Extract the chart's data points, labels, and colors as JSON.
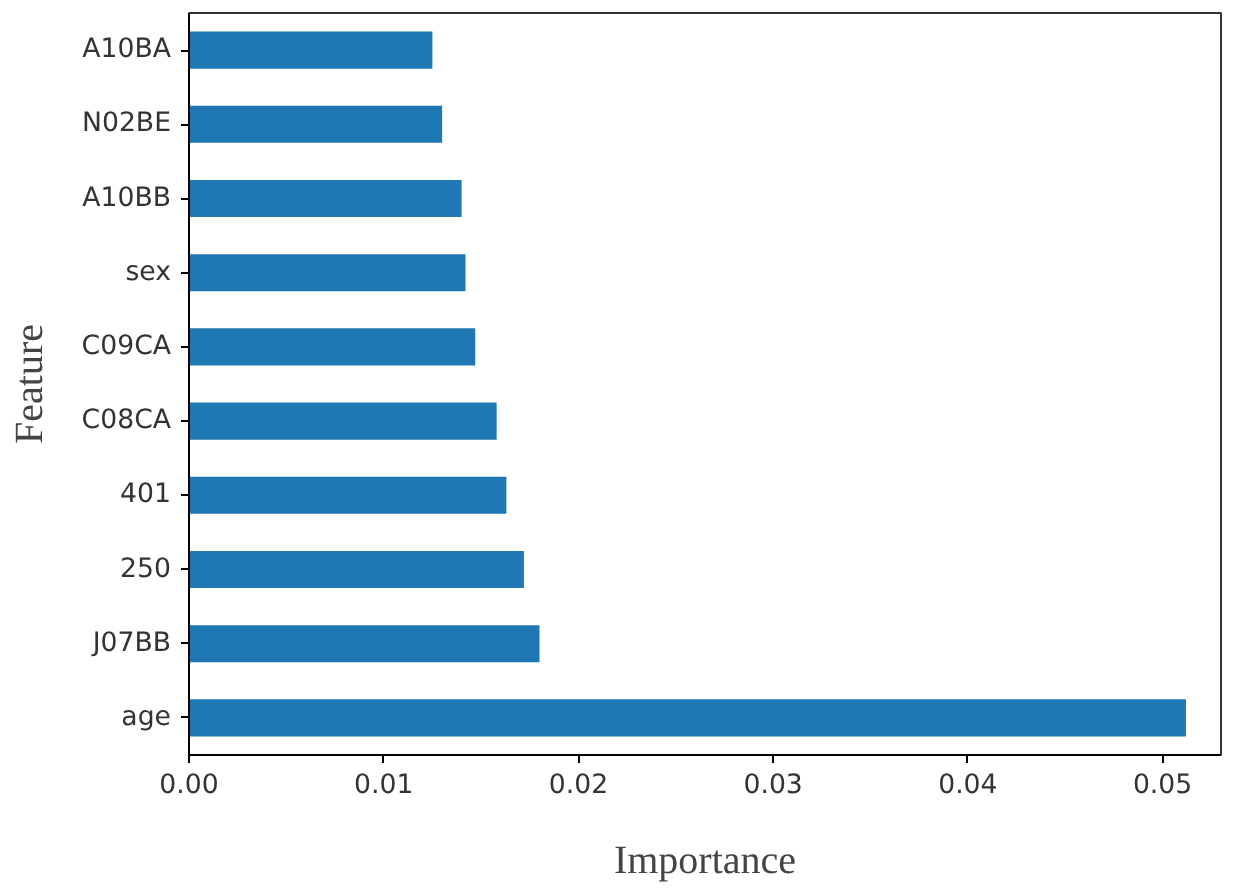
{
  "chart_data": {
    "type": "bar",
    "orientation": "horizontal",
    "xlabel": "Importance",
    "ylabel": "Feature",
    "categories": [
      "A10BA",
      "N02BE",
      "A10BB",
      "sex",
      "C09CA",
      "C08CA",
      "401",
      "250",
      "J07BB",
      "age"
    ],
    "values": [
      0.0125,
      0.013,
      0.014,
      0.0142,
      0.0147,
      0.0158,
      0.0163,
      0.0172,
      0.018,
      0.0512
    ],
    "color": "#1f77b4",
    "xlim": [
      0,
      0.053
    ],
    "xticks": [
      {
        "value": 0,
        "label": "0.00"
      },
      {
        "value": 0.01,
        "label": "0.01"
      },
      {
        "value": 0.02,
        "label": "0.02"
      },
      {
        "value": 0.03,
        "label": "0.03"
      },
      {
        "value": 0.04,
        "label": "0.04"
      },
      {
        "value": 0.05,
        "label": "0.05"
      }
    ],
    "grid": false
  }
}
